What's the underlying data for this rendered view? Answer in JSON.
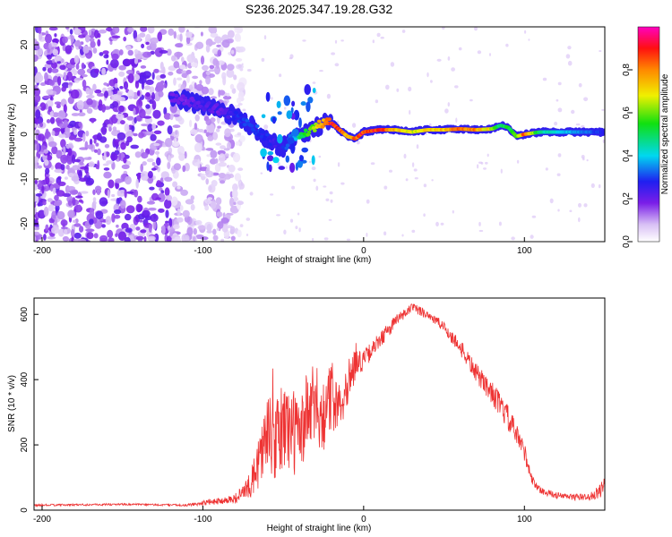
{
  "chart_data": [
    {
      "type": "heatmap",
      "title": "S236.2025.347.19.28.G32",
      "xlabel": "Height of straight line (km)",
      "ylabel": "Frequency (Hz)",
      "xlim": [
        -205,
        150
      ],
      "ylim": [
        -24,
        24
      ],
      "xticks": [
        -200,
        -100,
        0,
        100
      ],
      "yticks": [
        -20,
        -10,
        0,
        10,
        20
      ],
      "colorbar": {
        "label": "Normalized spectral amplitude",
        "range": [
          0.0,
          1.0
        ],
        "ticks": [
          0.0,
          0.2,
          0.4,
          0.6,
          0.8
        ],
        "tick_labels": [
          "0.0",
          "0.2",
          "0.4",
          "0.6",
          "0.8"
        ],
        "colormap": "rainbow (white-purple-blue-cyan-green-yellow-red-magenta)"
      },
      "ridge": {
        "description": "dominant frequency track vs height",
        "x": [
          -120,
          -110,
          -100,
          -90,
          -80,
          -70,
          -60,
          -55,
          -50,
          -45,
          -40,
          -35,
          -30,
          -25,
          -20,
          -15,
          -10,
          -5,
          0,
          10,
          20,
          30,
          40,
          50,
          60,
          70,
          80,
          85,
          90,
          95,
          100,
          110,
          120,
          130,
          140,
          150
        ],
        "y": [
          8,
          7.5,
          6.5,
          5.5,
          4,
          2,
          -1,
          -2,
          -3,
          -1,
          0,
          0.5,
          1.5,
          2.5,
          2.5,
          1,
          -0.5,
          -1,
          0.5,
          1,
          1,
          0.5,
          1,
          1,
          1.2,
          1,
          1.2,
          2,
          1.5,
          -0.5,
          0,
          0.5,
          0.5,
          0.5,
          0.5,
          0.5
        ],
        "amplitude": [
          0.2,
          0.2,
          0.25,
          0.2,
          0.3,
          0.35,
          0.3,
          0.25,
          0.3,
          0.35,
          0.5,
          0.6,
          0.7,
          0.85,
          0.95,
          0.9,
          0.8,
          0.9,
          0.95,
          0.95,
          0.8,
          0.7,
          0.75,
          0.8,
          0.9,
          0.85,
          0.7,
          0.5,
          0.55,
          0.6,
          0.9,
          0.5,
          0.45,
          0.4,
          0.35,
          0.3
        ]
      }
    },
    {
      "type": "line",
      "xlabel": "Height of straight line (km)",
      "ylabel": "SNR (10 * v/v)",
      "xlim": [
        -205,
        150
      ],
      "ylim": [
        0,
        650
      ],
      "xticks": [
        -200,
        -100,
        0,
        100
      ],
      "yticks": [
        0,
        200,
        400,
        600
      ],
      "series": [
        {
          "name": "SNR",
          "color": "#ee3333",
          "x": [
            -205,
            -150,
            -110,
            -100,
            -90,
            -80,
            -75,
            -70,
            -65,
            -60,
            -55,
            -50,
            -45,
            -40,
            -35,
            -30,
            -25,
            -20,
            -15,
            -10,
            -5,
            0,
            10,
            20,
            30,
            40,
            50,
            60,
            70,
            80,
            90,
            100,
            105,
            110,
            120,
            130,
            140,
            145,
            150
          ],
          "y": [
            15,
            18,
            15,
            22,
            28,
            35,
            55,
            80,
            160,
            230,
            200,
            260,
            250,
            220,
            300,
            320,
            290,
            350,
            330,
            390,
            450,
            460,
            520,
            580,
            620,
            600,
            560,
            500,
            420,
            360,
            280,
            180,
            90,
            60,
            45,
            40,
            40,
            50,
            75
          ],
          "noise_amplitude": [
            3,
            3,
            3,
            8,
            10,
            15,
            25,
            40,
            90,
            130,
            120,
            150,
            140,
            120,
            130,
            130,
            110,
            110,
            90,
            70,
            50,
            30,
            25,
            20,
            15,
            15,
            18,
            25,
            30,
            35,
            40,
            30,
            15,
            10,
            10,
            10,
            10,
            20,
            25
          ]
        }
      ]
    }
  ]
}
